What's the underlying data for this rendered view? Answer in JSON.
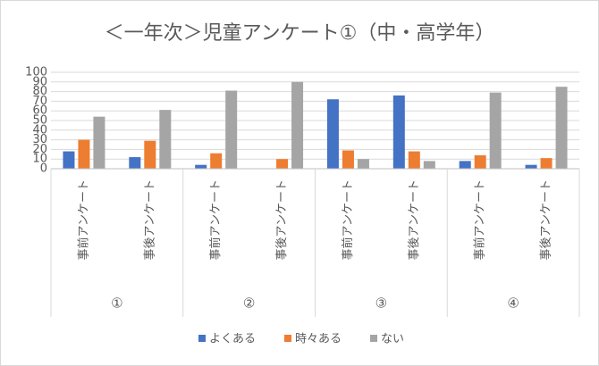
{
  "chart_data": {
    "type": "bar",
    "title": "＜一年次＞児童アンケート①（中・高学年）",
    "groups": [
      "①",
      "②",
      "③",
      "④"
    ],
    "categories": [
      "事前アンケート",
      "事後アンケート",
      "事前アンケート",
      "事後アンケート",
      "事前アンケート",
      "事後アンケート",
      "事前アンケート",
      "事後アンケート"
    ],
    "series": [
      {
        "name": "よくある",
        "color": "#4472c4",
        "values": [
          18,
          12,
          4,
          0,
          72,
          76,
          8,
          4
        ]
      },
      {
        "name": "時々ある",
        "color": "#ed7d31",
        "values": [
          30,
          29,
          16,
          10,
          19,
          18,
          14,
          11
        ]
      },
      {
        "name": "ない",
        "color": "#a5a5a5",
        "values": [
          54,
          61,
          81,
          90,
          10,
          8,
          79,
          85
        ]
      }
    ],
    "ylim": [
      0,
      100
    ],
    "yticks": [
      0,
      10,
      20,
      30,
      40,
      50,
      60,
      70,
      80,
      90,
      100
    ],
    "grid": true,
    "legend": "bottom"
  }
}
